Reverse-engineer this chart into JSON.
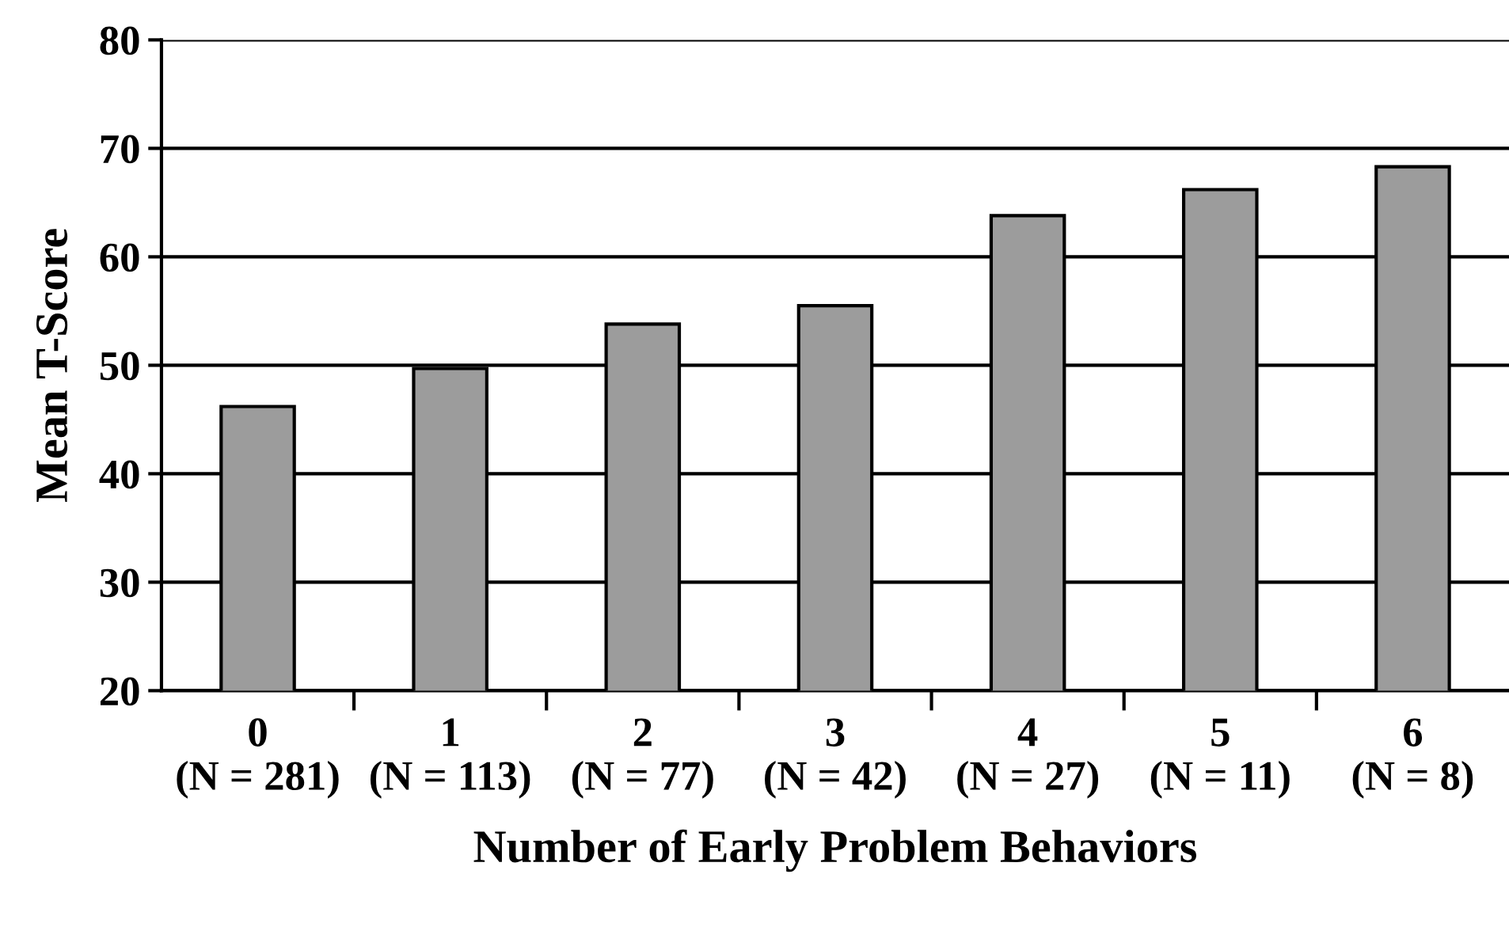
{
  "chart_data": {
    "type": "bar",
    "xlabel": "Number of Early Problem Behaviors",
    "ylabel": "Mean T-Score",
    "categories": [
      "0\n(N = 281)",
      "1\n(N = 113)",
      "2\n(N = 77)",
      "3\n(N = 42)",
      "4\n(N = 27)",
      "5\n(N = 11)",
      "6\n(N = 8)"
    ],
    "values": [
      46.2,
      49.7,
      53.8,
      55.5,
      63.8,
      66.2,
      68.3
    ],
    "color": "#9c9c9c",
    "ylim": [
      20,
      80
    ],
    "yticks": [
      20,
      30,
      40,
      50,
      60,
      70,
      80
    ],
    "grid": "y",
    "legend": false
  }
}
